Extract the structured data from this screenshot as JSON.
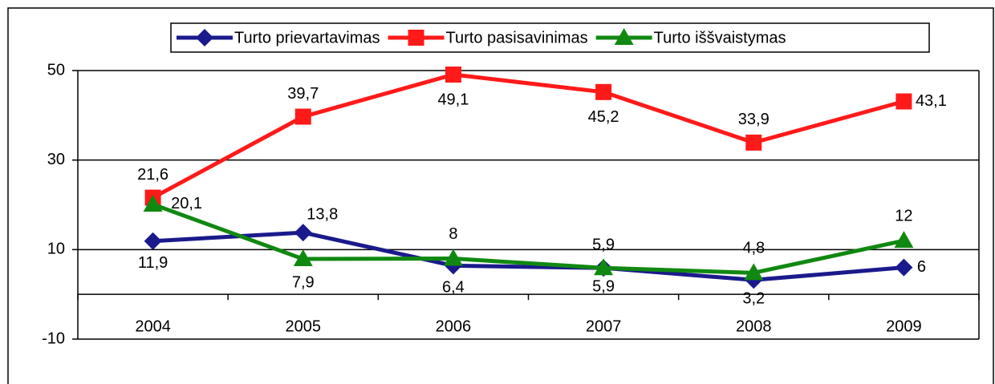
{
  "chart_data": {
    "type": "line",
    "categories": [
      "2004",
      "2005",
      "2006",
      "2007",
      "2008",
      "2009"
    ],
    "series": [
      {
        "name": "Turto prievartavimas",
        "color": "#1a1a8c",
        "marker": "diamond",
        "values": [
          11.9,
          13.8,
          6.4,
          5.9,
          3.2,
          6
        ],
        "value_labels": [
          "11,9",
          "13,8",
          "6,4",
          "5,9",
          "3,2",
          "6"
        ]
      },
      {
        "name": "Turto pasisavinimas",
        "color": "#ff1a1a",
        "marker": "square",
        "values": [
          21.6,
          39.7,
          49.1,
          45.2,
          33.9,
          43.1
        ],
        "value_labels": [
          "21,6",
          "39,7",
          "49,1",
          "45,2",
          "33,9",
          "43,1"
        ]
      },
      {
        "name": "Turto iššvaistymas",
        "color": "#118811",
        "marker": "triangle",
        "values": [
          20.1,
          7.9,
          8,
          5.9,
          4.8,
          12
        ],
        "value_labels": [
          "20,1",
          "7,9",
          "8",
          "5,9",
          "4,8",
          "12"
        ]
      }
    ],
    "ylim": [
      -10,
      50
    ],
    "yticks": [
      -10,
      10,
      30,
      50
    ],
    "grid": true,
    "legend": "top"
  }
}
